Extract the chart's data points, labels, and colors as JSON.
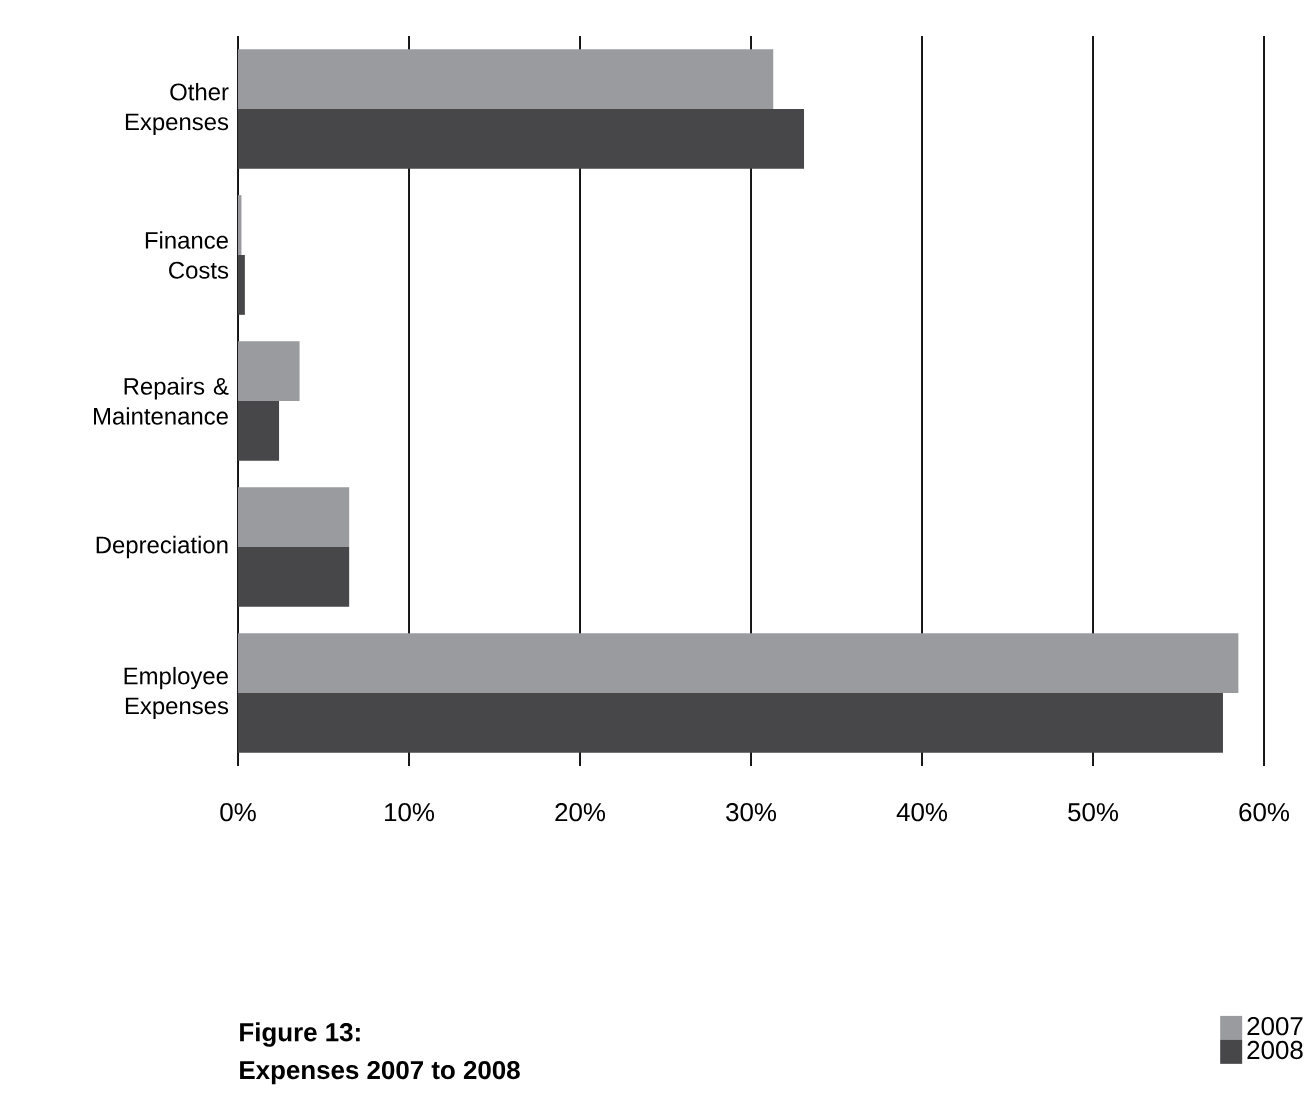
{
  "chart_data": {
    "type": "bar",
    "orientation": "horizontal",
    "title": "Figure 13:",
    "subtitle": "Expenses 2007 to 2008",
    "categories": [
      "Other Expenses",
      "Finance Costs",
      "Repairs & Maintenance",
      "Depreciation",
      "Employee Expenses"
    ],
    "series": [
      {
        "name": "2007",
        "color": "#9a9b9f",
        "values": [
          31.3,
          0.2,
          3.6,
          6.5,
          58.5
        ]
      },
      {
        "name": "2008",
        "color": "#474749",
        "values": [
          33.1,
          0.4,
          2.4,
          6.5,
          57.6
        ]
      }
    ],
    "xlim": [
      0,
      60
    ],
    "xticks": [
      {
        "value": 0,
        "label": "0%"
      },
      {
        "value": 10,
        "label": "10%"
      },
      {
        "value": 20,
        "label": "20%"
      },
      {
        "value": 30,
        "label": "30%"
      },
      {
        "value": 40,
        "label": "40%"
      },
      {
        "value": 50,
        "label": "50%"
      },
      {
        "value": 60,
        "label": "60%"
      }
    ],
    "grid": "x",
    "legend": "bottom right"
  }
}
